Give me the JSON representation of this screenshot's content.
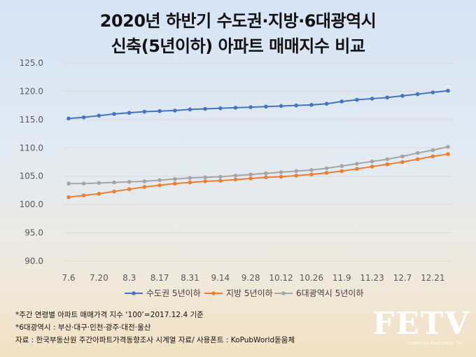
{
  "chart_data": {
    "type": "line",
    "title_line1": "2020년 하반기 수도권·지방·6대광역시",
    "title_line2": "신축(5년이하) 아파트 매매지수 비교",
    "xlabel": "",
    "ylabel": "",
    "ylim": [
      90,
      125
    ],
    "yticks": [
      "90.0",
      "95.0",
      "100.0",
      "105.0",
      "110.0",
      "115.0",
      "120.0",
      "125.0"
    ],
    "grid": true,
    "legend_position": "bottom",
    "x": [
      "7.6",
      "7.13",
      "7.20",
      "7.27",
      "8.3",
      "8.10",
      "8.17",
      "8.24",
      "8.31",
      "9.7",
      "9.14",
      "9.21",
      "9.28",
      "10.5",
      "10.12",
      "10.19",
      "10.26",
      "11.2",
      "11.9",
      "11.16",
      "11.23",
      "11.30",
      "12.7",
      "12.14",
      "12.21",
      "12.28"
    ],
    "x_tick_labels": [
      "7.6",
      "",
      "7.20",
      "",
      "8.3",
      "",
      "8.17",
      "",
      "8.31",
      "",
      "9.14",
      "",
      "9.28",
      "",
      "10.12",
      "",
      "10.26",
      "",
      "11.9",
      "",
      "11.23",
      "",
      "12.7",
      "",
      "12.21",
      ""
    ],
    "series": [
      {
        "name": "수도권 5년이하",
        "color": "#4472c4",
        "values": [
          115.2,
          115.4,
          115.7,
          116.0,
          116.2,
          116.4,
          116.5,
          116.6,
          116.8,
          116.9,
          117.0,
          117.1,
          117.2,
          117.3,
          117.4,
          117.5,
          117.6,
          117.8,
          118.2,
          118.5,
          118.7,
          118.9,
          119.2,
          119.5,
          119.8,
          120.1
        ]
      },
      {
        "name": "지방 5년이하",
        "color": "#ed7d31",
        "values": [
          101.3,
          101.6,
          101.9,
          102.3,
          102.7,
          103.1,
          103.4,
          103.7,
          103.9,
          104.1,
          104.2,
          104.4,
          104.6,
          104.8,
          104.9,
          105.1,
          105.3,
          105.6,
          105.9,
          106.3,
          106.7,
          107.1,
          107.5,
          108.0,
          108.5,
          108.9
        ]
      },
      {
        "name": "6대광역시 5년이하",
        "color": "#a5a5a5",
        "values": [
          103.7,
          103.7,
          103.8,
          103.9,
          104.0,
          104.1,
          104.3,
          104.5,
          104.7,
          104.8,
          104.9,
          105.1,
          105.3,
          105.5,
          105.7,
          105.9,
          106.1,
          106.4,
          106.8,
          107.2,
          107.6,
          108.0,
          108.5,
          109.1,
          109.6,
          110.2
        ]
      }
    ]
  },
  "notes": [
    "*주간 연령별 아파트 매매가격 지수 ‘100’=2017.12.4 기준",
    "*6대광역시 : 부산·대구·인천·광주·대전·울산",
    "자료 : 한국부동산원 주간아파트가격동향조사 시계열 자료/ 사용폰트 : KoPubWorld돋움체"
  ],
  "logo": {
    "text": "FETV",
    "subtext": "Financial Economic TV"
  }
}
